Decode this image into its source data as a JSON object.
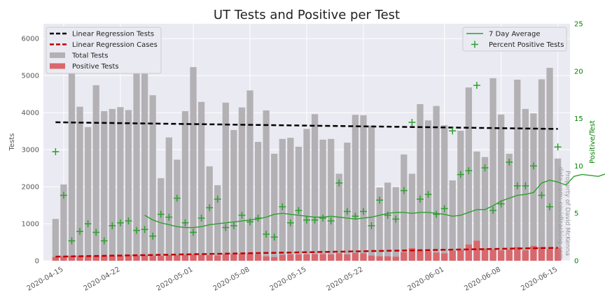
{
  "chart_data": {
    "type": "bar",
    "title": "UT Tests and Positive per Test",
    "ylabel": "Tests",
    "ylabel_right": "Positive/Test",
    "ylim": [
      0,
      6400
    ],
    "ylim_right": [
      0,
      25
    ],
    "yticks": [
      0,
      1000,
      2000,
      3000,
      4000,
      5000,
      6000
    ],
    "yticks_right": [
      0,
      5,
      10,
      15,
      20,
      25
    ],
    "grid": true,
    "x_start": "2020-04-14",
    "xticks": [
      "2020-04-15",
      "2020-04-22",
      "2020-05-01",
      "2020-05-08",
      "2020-05-15",
      "2020-05-22",
      "2020-06-01",
      "2020-06-08",
      "2020-06-15"
    ],
    "watermark": [
      "Property of David McKenna",
      "data from: covidtracking.com"
    ],
    "legend_left": [
      {
        "label": "Linear Regression Tests",
        "kind": "dash",
        "color": "#000000"
      },
      {
        "label": "Linear Regression Cases",
        "kind": "dash",
        "color": "#c00000"
      },
      {
        "label": "Total Tests",
        "kind": "patch",
        "color": "#b3b1b4"
      },
      {
        "label": "Positive Tests",
        "kind": "patch",
        "color": "#d9686c"
      }
    ],
    "legend_right": [
      {
        "label": "7 Day Average",
        "kind": "line",
        "color": "#2ca02c"
      },
      {
        "label": "Percent Positive Tests",
        "kind": "plus",
        "color": "#2ca02c"
      }
    ],
    "series": [
      {
        "name": "Total Tests",
        "color": "#b3b1b4",
        "values": [
          1130,
          2060,
          5200,
          4160,
          3610,
          4740,
          4040,
          4100,
          4150,
          4070,
          5490,
          5470,
          4470,
          2230,
          3330,
          2730,
          4040,
          5230,
          4290,
          2550,
          2040,
          4270,
          3530,
          4140,
          4600,
          3210,
          4060,
          2890,
          3290,
          3320,
          3080,
          3560,
          3960,
          3270,
          3290,
          2350,
          3190,
          3940,
          3930,
          3650,
          1980,
          2110,
          1990,
          2870,
          2350,
          4230,
          3790,
          4180,
          3660,
          2170,
          3510,
          4680,
          2950,
          2800,
          4930,
          3950,
          2890,
          4890,
          4100,
          3980,
          4900,
          5210,
          2760
        ]
      },
      {
        "name": "Positive Tests",
        "color": "#d9686c",
        "values": [
          100,
          120,
          130,
          130,
          120,
          130,
          120,
          130,
          140,
          150,
          140,
          150,
          140,
          130,
          150,
          150,
          160,
          170,
          160,
          150,
          140,
          180,
          180,
          190,
          210,
          170,
          120,
          100,
          160,
          170,
          170,
          170,
          180,
          180,
          170,
          200,
          170,
          210,
          200,
          140,
          120,
          120,
          110,
          230,
          340,
          280,
          260,
          220,
          200,
          270,
          290,
          440,
          540,
          330,
          300,
          280,
          300,
          370,
          280,
          400,
          370,
          320,
          340
        ]
      },
      {
        "name": "Percent Positive Tests",
        "color": "#2ca02c",
        "values": [
          11.5,
          6.9,
          2.1,
          3.1,
          3.9,
          3.0,
          2.1,
          3.7,
          4.0,
          4.2,
          3.2,
          3.3,
          2.6,
          4.9,
          4.6,
          6.6,
          4.0,
          3.0,
          4.5,
          5.6,
          6.5,
          3.5,
          3.7,
          4.8,
          4.1,
          4.5,
          2.8,
          2.5,
          5.7,
          4.0,
          5.3,
          4.3,
          4.3,
          4.5,
          4.2,
          8.2,
          5.2,
          4.7,
          5.2,
          3.7,
          6.4,
          4.8,
          4.4,
          7.4,
          14.6,
          6.5,
          7.0,
          4.9,
          5.5,
          13.7,
          9.1,
          9.5,
          18.5,
          9.8,
          5.3,
          6.0,
          10.4,
          7.9,
          7.9,
          10.0,
          6.9,
          5.7,
          12.0
        ]
      },
      {
        "name": "7 Day Average",
        "color": "#2ca02c",
        "x_offset": 11,
        "values": [
          4.8,
          4.3,
          4.0,
          3.8,
          3.6,
          3.5,
          3.5,
          3.6,
          3.8,
          3.9,
          4.0,
          4.1,
          4.2,
          4.3,
          4.4,
          4.6,
          4.9,
          5.0,
          4.9,
          4.8,
          4.7,
          4.6,
          4.6,
          4.7,
          4.6,
          4.5,
          4.4,
          4.5,
          4.6,
          4.8,
          5.0,
          5.1,
          5.1,
          5.0,
          5.1,
          5.1,
          5.0,
          4.9,
          4.7,
          4.8,
          5.1,
          5.4,
          5.4,
          5.8,
          6.3,
          6.6,
          6.9,
          7.0,
          7.2,
          8.2,
          8.5,
          8.3,
          8.0,
          8.9,
          9.1,
          9.0,
          8.9,
          9.2,
          9.3,
          8.6,
          7.9,
          7.8,
          7.9
        ]
      },
      {
        "name": "Linear Regression Tests",
        "color": "#000000",
        "values": [
          3740,
          3560
        ]
      },
      {
        "name": "Linear Regression Cases",
        "color": "#c00000",
        "values": [
          110,
          350
        ]
      }
    ]
  }
}
